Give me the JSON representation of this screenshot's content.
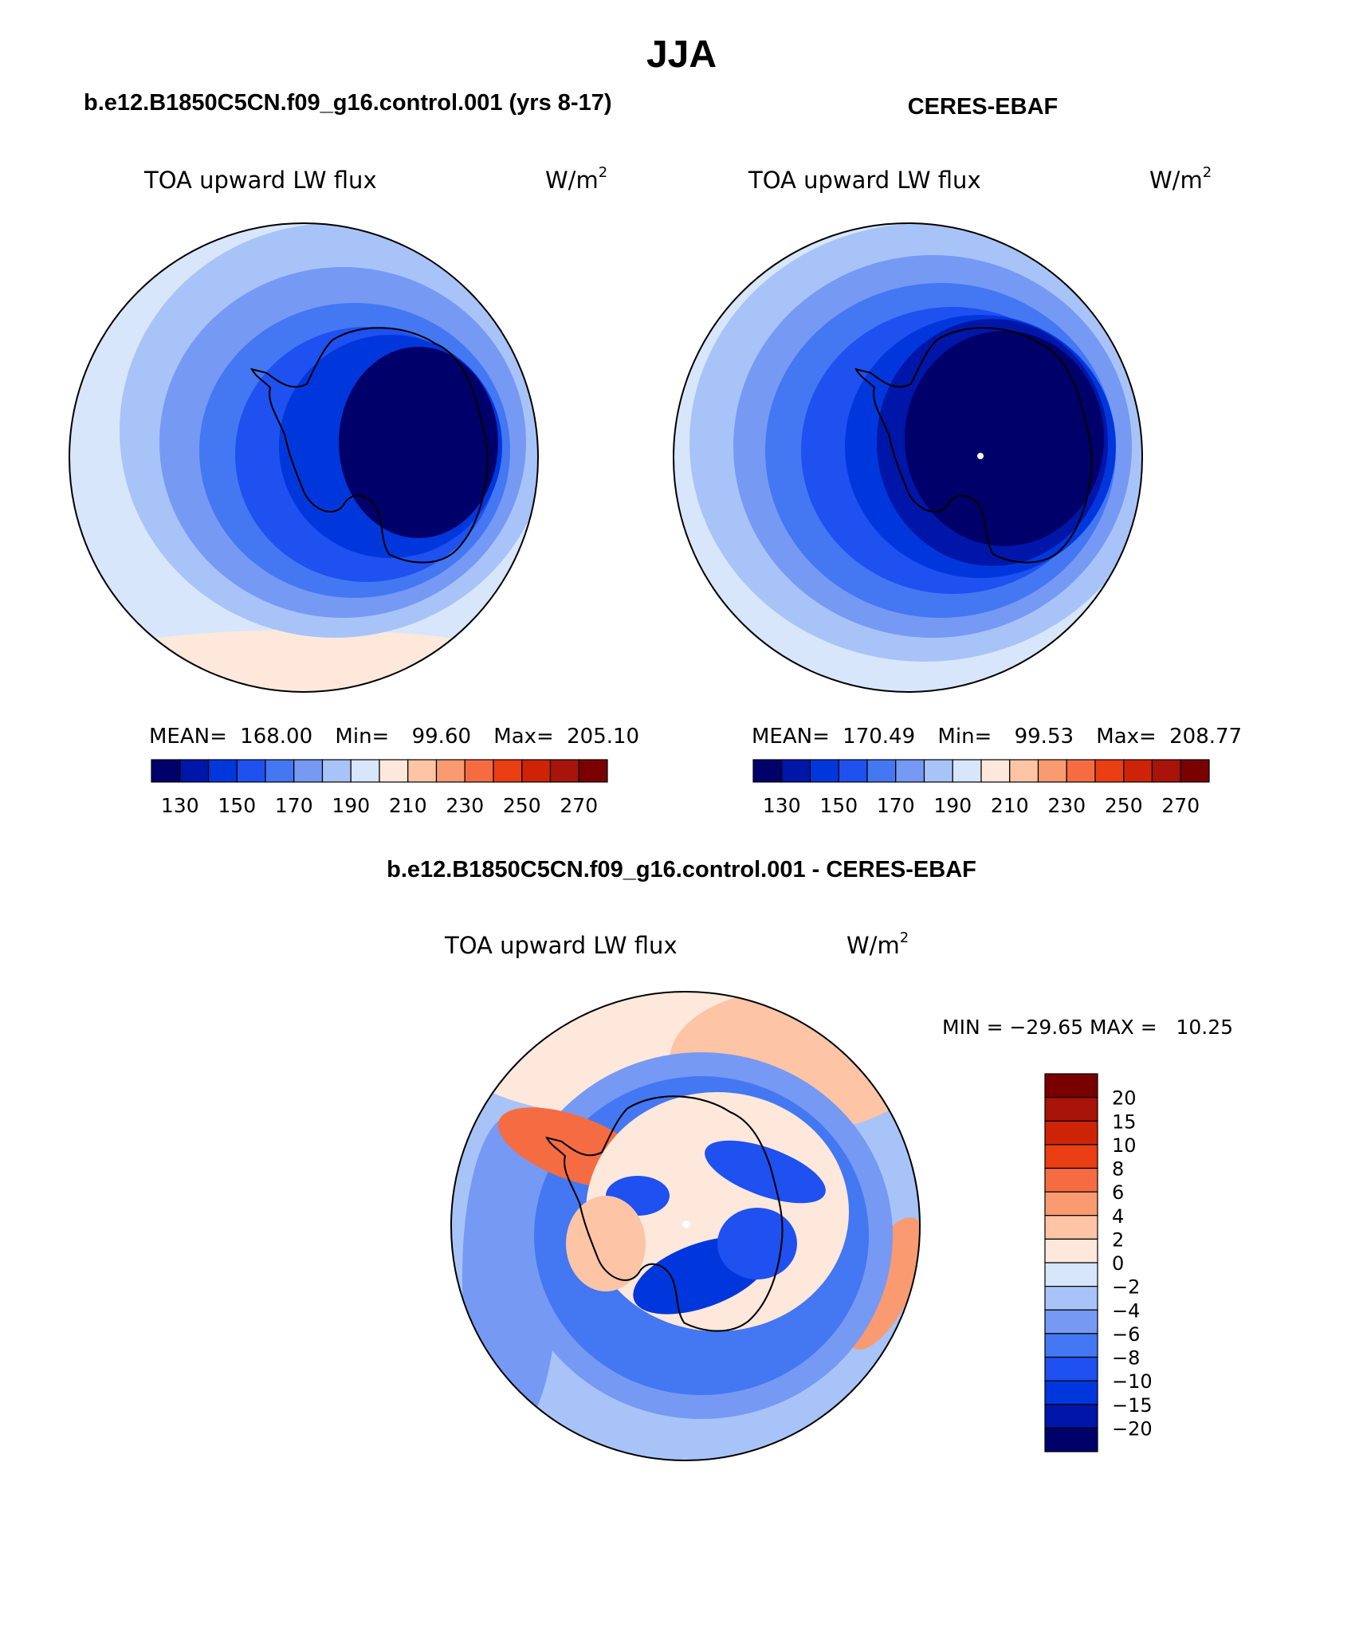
{
  "figure": {
    "title": "JJA",
    "bottom_heading": "b.e12.B1850C5CN.f09_g16.control.001 - CERES-EBAF"
  },
  "colors": {
    "main_scale": [
      "#00006b",
      "#0016a8",
      "#0037dd",
      "#1f50f0",
      "#4477f2",
      "#7699f4",
      "#a8c3f7",
      "#d7e6fb",
      "#fde8db",
      "#fdc4a6",
      "#fa9a70",
      "#f56c43",
      "#ea3e13",
      "#cd2408",
      "#a8130a",
      "#7a0000"
    ],
    "diff_scale": [
      "#00006b",
      "#0016a8",
      "#0037dd",
      "#1f50f0",
      "#4477f2",
      "#7699f4",
      "#a8c3f7",
      "#d7e6fb",
      "#fde8db",
      "#fdc4a6",
      "#fa9a70",
      "#f56c43",
      "#ea3e13",
      "#cd2408",
      "#a8130a",
      "#7a0000"
    ],
    "coastline": "#000000"
  },
  "panels": {
    "model": {
      "heading": "b.e12.B1850C5CN.f09_g16.control.001 (yrs 8-17)",
      "left_label": "TOA upward LW flux",
      "units_base": "W/m",
      "units_exp": "2",
      "stats": {
        "mean_label": "MEAN=",
        "mean": "168.00",
        "min_label": "Min=",
        "min": "99.60",
        "max_label": "Max=",
        "max": "205.10"
      }
    },
    "obs": {
      "heading": "CERES-EBAF",
      "left_label": "TOA upward LW flux",
      "units_base": "W/m",
      "units_exp": "2",
      "stats": {
        "mean_label": "MEAN=",
        "mean": "170.49",
        "min_label": "Min=",
        "min": "99.53",
        "max_label": "Max=",
        "max": "208.77"
      }
    },
    "diff": {
      "left_label": "TOA upward LW flux",
      "units_base": "W/m",
      "units_exp": "2",
      "minmax": "MIN = −29.65 MAX =   10.25"
    }
  },
  "chart_data": [
    {
      "type": "heatmap",
      "title": "b.e12.B1850C5CN.f09_g16.control.001 (yrs 8-17)",
      "variable": "TOA upward LW flux",
      "units": "W/m2",
      "projection": "south polar stereographic",
      "contour_levels": [
        120,
        130,
        140,
        150,
        160,
        170,
        180,
        190,
        200,
        210,
        220,
        230,
        240,
        250,
        260,
        270
      ],
      "colorbar_ticks": [
        "130",
        "150",
        "170",
        "190",
        "210",
        "230",
        "250",
        "270"
      ],
      "mean": 168.0,
      "min": 99.6,
      "max": 205.1
    },
    {
      "type": "heatmap",
      "title": "CERES-EBAF",
      "variable": "TOA upward LW flux",
      "units": "W/m2",
      "projection": "south polar stereographic",
      "contour_levels": [
        120,
        130,
        140,
        150,
        160,
        170,
        180,
        190,
        200,
        210,
        220,
        230,
        240,
        250,
        260,
        270
      ],
      "colorbar_ticks": [
        "130",
        "150",
        "170",
        "190",
        "210",
        "230",
        "250",
        "270"
      ],
      "mean": 170.49,
      "min": 99.53,
      "max": 208.77
    },
    {
      "type": "heatmap",
      "title": "b.e12.B1850C5CN.f09_g16.control.001 - CERES-EBAF",
      "variable": "TOA upward LW flux",
      "units": "W/m2",
      "projection": "south polar stereographic",
      "colorbar_ticks": [
        "20",
        "15",
        "10",
        "8",
        "6",
        "4",
        "2",
        "0",
        "−2",
        "−4",
        "−6",
        "−8",
        "−10",
        "−15",
        "−20"
      ],
      "min": -29.65,
      "max": 10.25
    }
  ]
}
